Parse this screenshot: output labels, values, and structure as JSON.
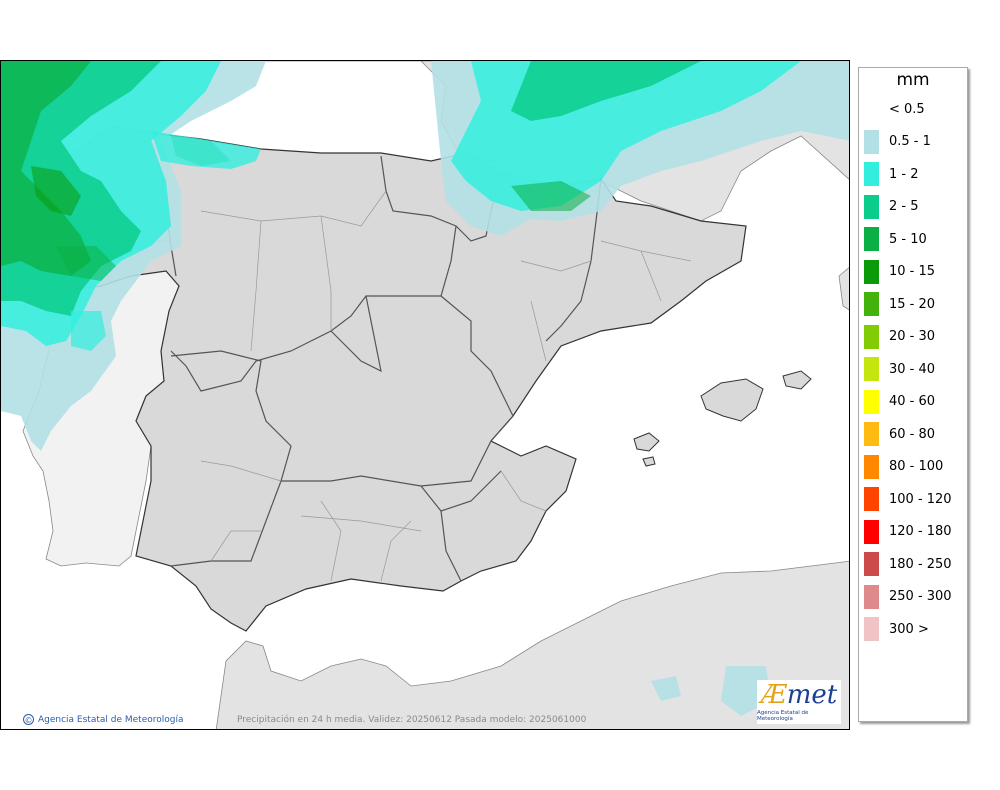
{
  "legend": {
    "unit": "mm",
    "classes": [
      {
        "label": "< 0.5",
        "color": "#ffffff"
      },
      {
        "label": "0.5 - 1",
        "color": "#b3e0e5"
      },
      {
        "label": "1 - 2",
        "color": "#33eedd"
      },
      {
        "label": "2 - 5",
        "color": "#0ccc8c"
      },
      {
        "label": "5 - 10",
        "color": "#0bb044"
      },
      {
        "label": "10 - 15",
        "color": "#0a9a0a"
      },
      {
        "label": "15 - 20",
        "color": "#44b20c"
      },
      {
        "label": "20 - 30",
        "color": "#82cc05"
      },
      {
        "label": "30 - 40",
        "color": "#c4e60e"
      },
      {
        "label": "40 - 60",
        "color": "#ffff00"
      },
      {
        "label": "60 - 80",
        "color": "#ffbb11"
      },
      {
        "label": "80 - 100",
        "color": "#ff8800"
      },
      {
        "label": "100 - 120",
        "color": "#ff4400"
      },
      {
        "label": "120 - 180",
        "color": "#ff0000"
      },
      {
        "label": "180 - 250",
        "color": "#cc4a4a"
      },
      {
        "label": "250 - 300",
        "color": "#de8a8a"
      },
      {
        "label": "300 >",
        "color": "#f0c4c4"
      }
    ]
  },
  "map": {
    "credit": "Agencia Estatal de Meteorología",
    "caption": "Precipitación en 24 h media. Validez: 20250612 Pasada modelo: 2025061000",
    "logo_text": "AEmet",
    "logo_subtitle": "Agencia Estatal de Meteorología"
  }
}
